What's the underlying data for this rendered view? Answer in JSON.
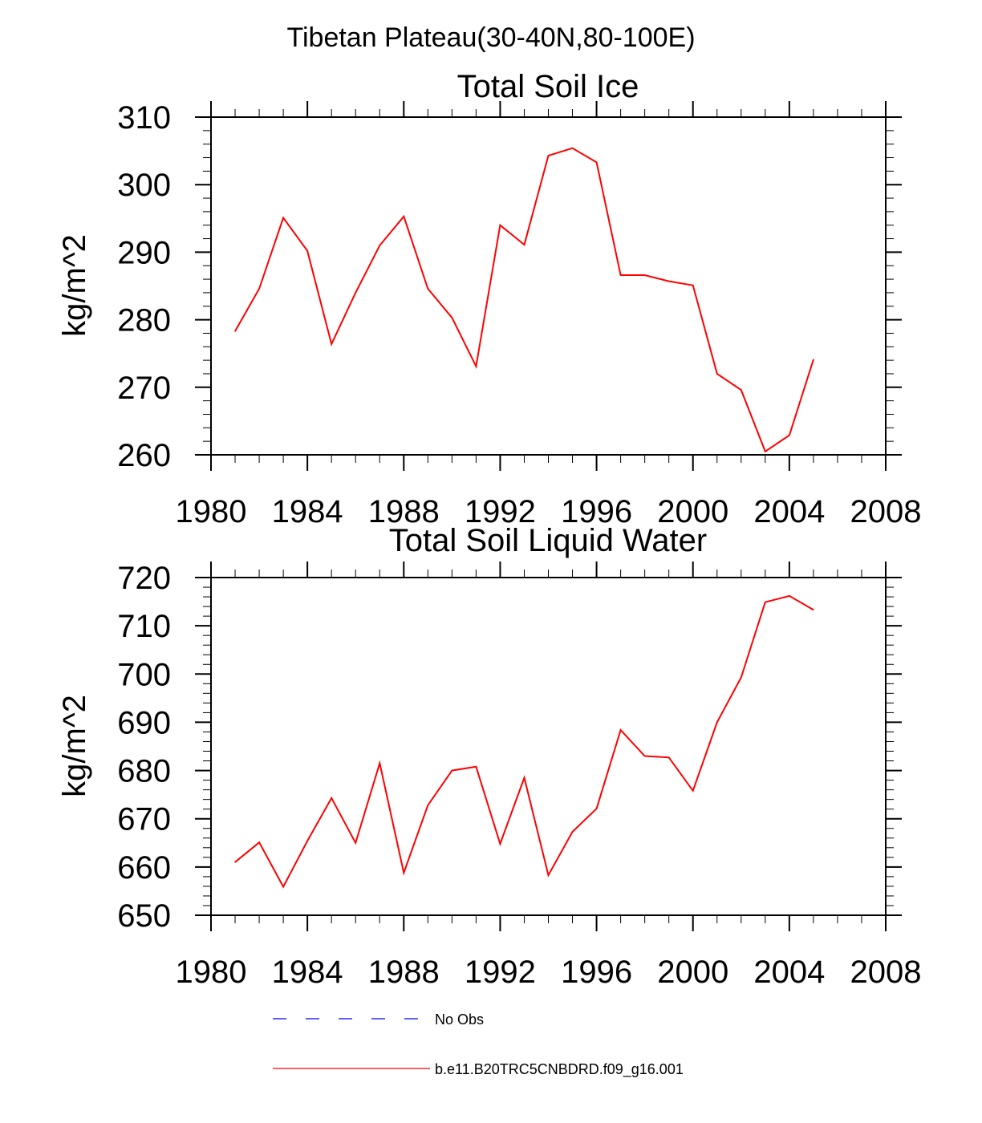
{
  "figure": {
    "title": "Tibetan Plateau(30-40N,80-100E)"
  },
  "chart_data": [
    {
      "type": "line",
      "title": "Total Soil Ice",
      "xlabel": "",
      "ylabel": "kg/m^2",
      "xlim": [
        1980,
        2008
      ],
      "ylim": [
        260,
        310
      ],
      "xticks": [
        1980,
        1984,
        1988,
        1992,
        1996,
        2000,
        2004,
        2008
      ],
      "yticks": [
        260,
        270,
        280,
        290,
        300,
        310
      ],
      "xminor_step": 1,
      "yminor_step": 2,
      "grid": false,
      "series": [
        {
          "name": "b.e11.B20TRC5CNBDRD.f09_g16.001",
          "color": "#ff0000",
          "x": [
            1981,
            1982,
            1983,
            1984,
            1985,
            1986,
            1987,
            1988,
            1989,
            1990,
            1991,
            1992,
            1993,
            1994,
            1995,
            1996,
            1997,
            1998,
            1999,
            2000,
            2001,
            2002,
            2003,
            2004,
            2005
          ],
          "y": [
            278.3,
            284.6,
            295.1,
            290.2,
            276.4,
            284.0,
            291.0,
            295.3,
            284.6,
            280.3,
            273.1,
            294.0,
            291.1,
            304.3,
            305.4,
            303.3,
            286.6,
            286.6,
            285.7,
            285.1,
            272.0,
            269.6,
            260.5,
            262.9,
            274.1
          ]
        }
      ]
    },
    {
      "type": "line",
      "title": "Total Soil Liquid Water",
      "xlabel": "",
      "ylabel": "kg/m^2",
      "xlim": [
        1980,
        2008
      ],
      "ylim": [
        650,
        720
      ],
      "xticks": [
        1980,
        1984,
        1988,
        1992,
        1996,
        2000,
        2004,
        2008
      ],
      "yticks": [
        650,
        660,
        670,
        680,
        690,
        700,
        710,
        720
      ],
      "xminor_step": 1,
      "yminor_step": 2,
      "grid": false,
      "series": [
        {
          "name": "b.e11.B20TRC5CNBDRD.f09_g16.001",
          "color": "#ff0000",
          "x": [
            1981,
            1982,
            1983,
            1984,
            1985,
            1986,
            1987,
            1988,
            1989,
            1990,
            1991,
            1992,
            1993,
            1994,
            1995,
            1996,
            1997,
            1998,
            1999,
            2000,
            2001,
            2002,
            2003,
            2004,
            2005
          ],
          "y": [
            661.0,
            665.1,
            655.9,
            665.4,
            674.3,
            665.0,
            681.5,
            658.8,
            672.8,
            680.0,
            680.8,
            664.8,
            678.5,
            658.3,
            667.3,
            672.1,
            688.4,
            683.0,
            682.7,
            675.8,
            690.0,
            699.3,
            714.9,
            716.2,
            713.3
          ]
        }
      ]
    }
  ],
  "legend": {
    "placement": "bottom",
    "items": [
      {
        "label": "No Obs",
        "color": "#0000ff",
        "style": "dashed"
      },
      {
        "label": "b.e11.B20TRC5CNBDRD.f09_g16.001",
        "color": "#ff0000",
        "style": "solid"
      }
    ]
  }
}
